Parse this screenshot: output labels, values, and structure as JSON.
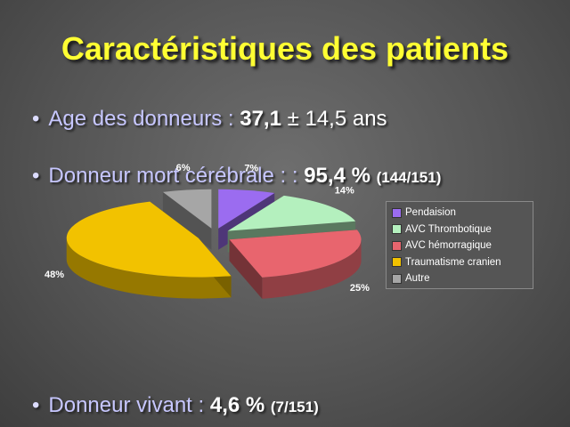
{
  "slide": {
    "title": "Caractéristiques des patients",
    "bullets": [
      {
        "text": "Age des donneurs : ",
        "value": "37,1",
        "extra": " ± 14,5 ans",
        "small": ""
      },
      {
        "text": "Donneur mort cérébrale : : ",
        "value": "95,4 %",
        "extra": "",
        "small": "(144/151)"
      },
      {
        "text": "Donneur vivant : ",
        "value": "4,6 %",
        "extra": "",
        "small": "(7/151)"
      }
    ],
    "bullet_symbol": "•"
  },
  "chart_data": {
    "type": "pie",
    "style": "3d-exploded",
    "categories": [
      "Pendaision",
      "AVC Thrombotique",
      "AVC hémorragique",
      "Traumatisme cranien",
      "Autre"
    ],
    "values": [
      7,
      14,
      25,
      48,
      6
    ],
    "labels": [
      "7%",
      "14%",
      "25%",
      "48%",
      "6%"
    ],
    "colors": [
      "#9b6cf0",
      "#b4f0be",
      "#e8656e",
      "#f2c200",
      "#a6a6a6"
    ],
    "legend_position": "right"
  }
}
